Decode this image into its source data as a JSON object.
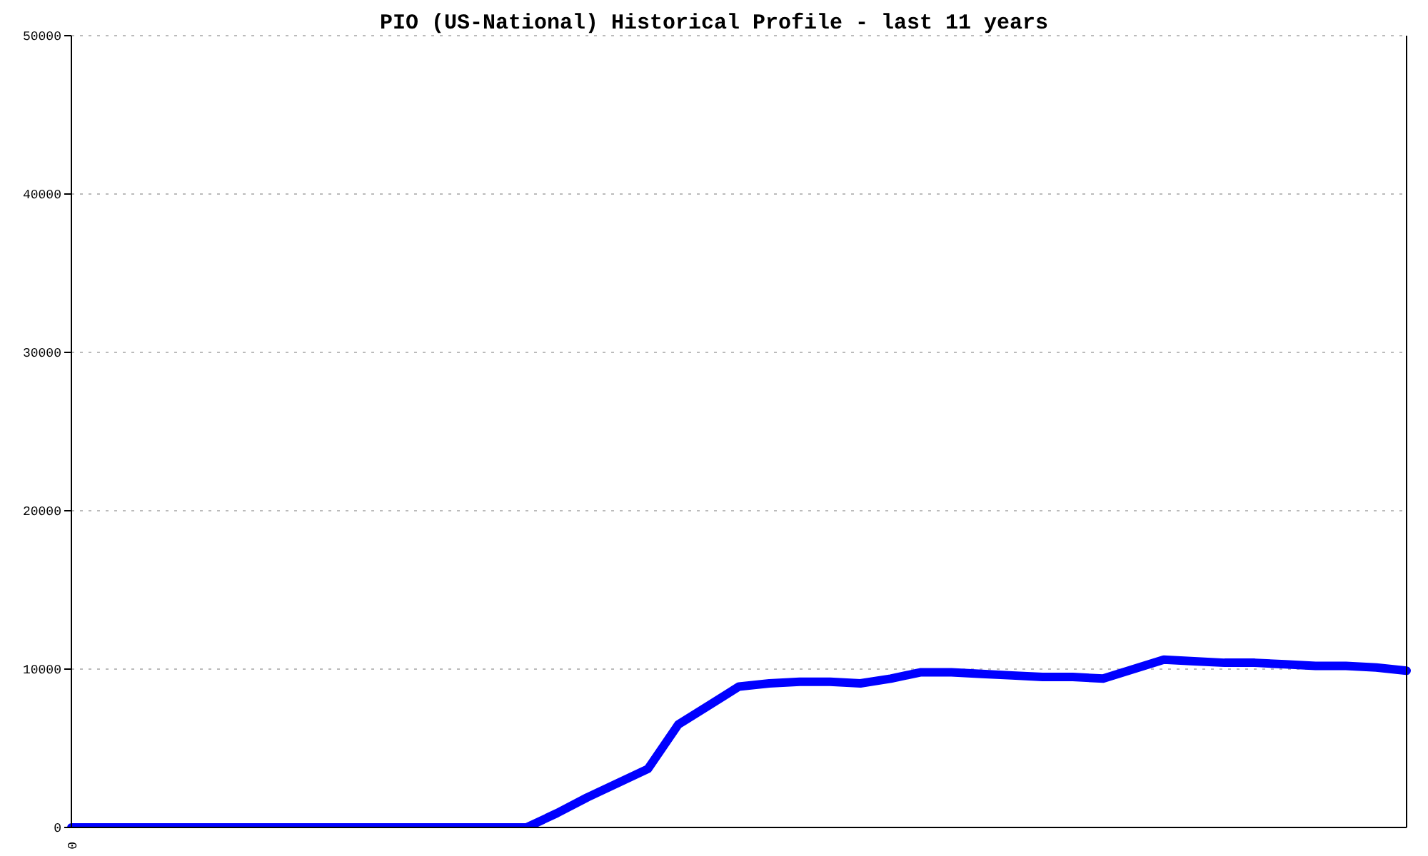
{
  "chart_data": {
    "type": "line",
    "title": "PIO (US-National) Historical Profile - last 11 years",
    "categories": [
      "0",
      null,
      null,
      null,
      null,
      null,
      null,
      null,
      null,
      null,
      null,
      null,
      null,
      null,
      null,
      null,
      null,
      null,
      null,
      null,
      null,
      null,
      null,
      null,
      null,
      null,
      null,
      null,
      null,
      null,
      null,
      null,
      null,
      null,
      null,
      null,
      null,
      null,
      null,
      null,
      null,
      null,
      null,
      null,
      null
    ],
    "series": [
      {
        "color": "#0000ff",
        "values": [
          0,
          0,
          0,
          0,
          0,
          0,
          0,
          0,
          0,
          0,
          0,
          0,
          0,
          0,
          0,
          0,
          900,
          1900,
          2800,
          3700,
          6500,
          7700,
          8900,
          9100,
          9200,
          9200,
          9100,
          9400,
          9800,
          9800,
          9700,
          9600,
          9500,
          9500,
          9400,
          10000,
          10600,
          10500,
          10400,
          10400,
          10300,
          10200,
          10200,
          10100,
          9900
        ]
      }
    ],
    "ylim": [
      0,
      50000
    ],
    "yticks": [
      0,
      10000,
      20000,
      30000,
      40000,
      50000
    ],
    "grid": "y",
    "marker": "none",
    "line_style": "solid"
  }
}
